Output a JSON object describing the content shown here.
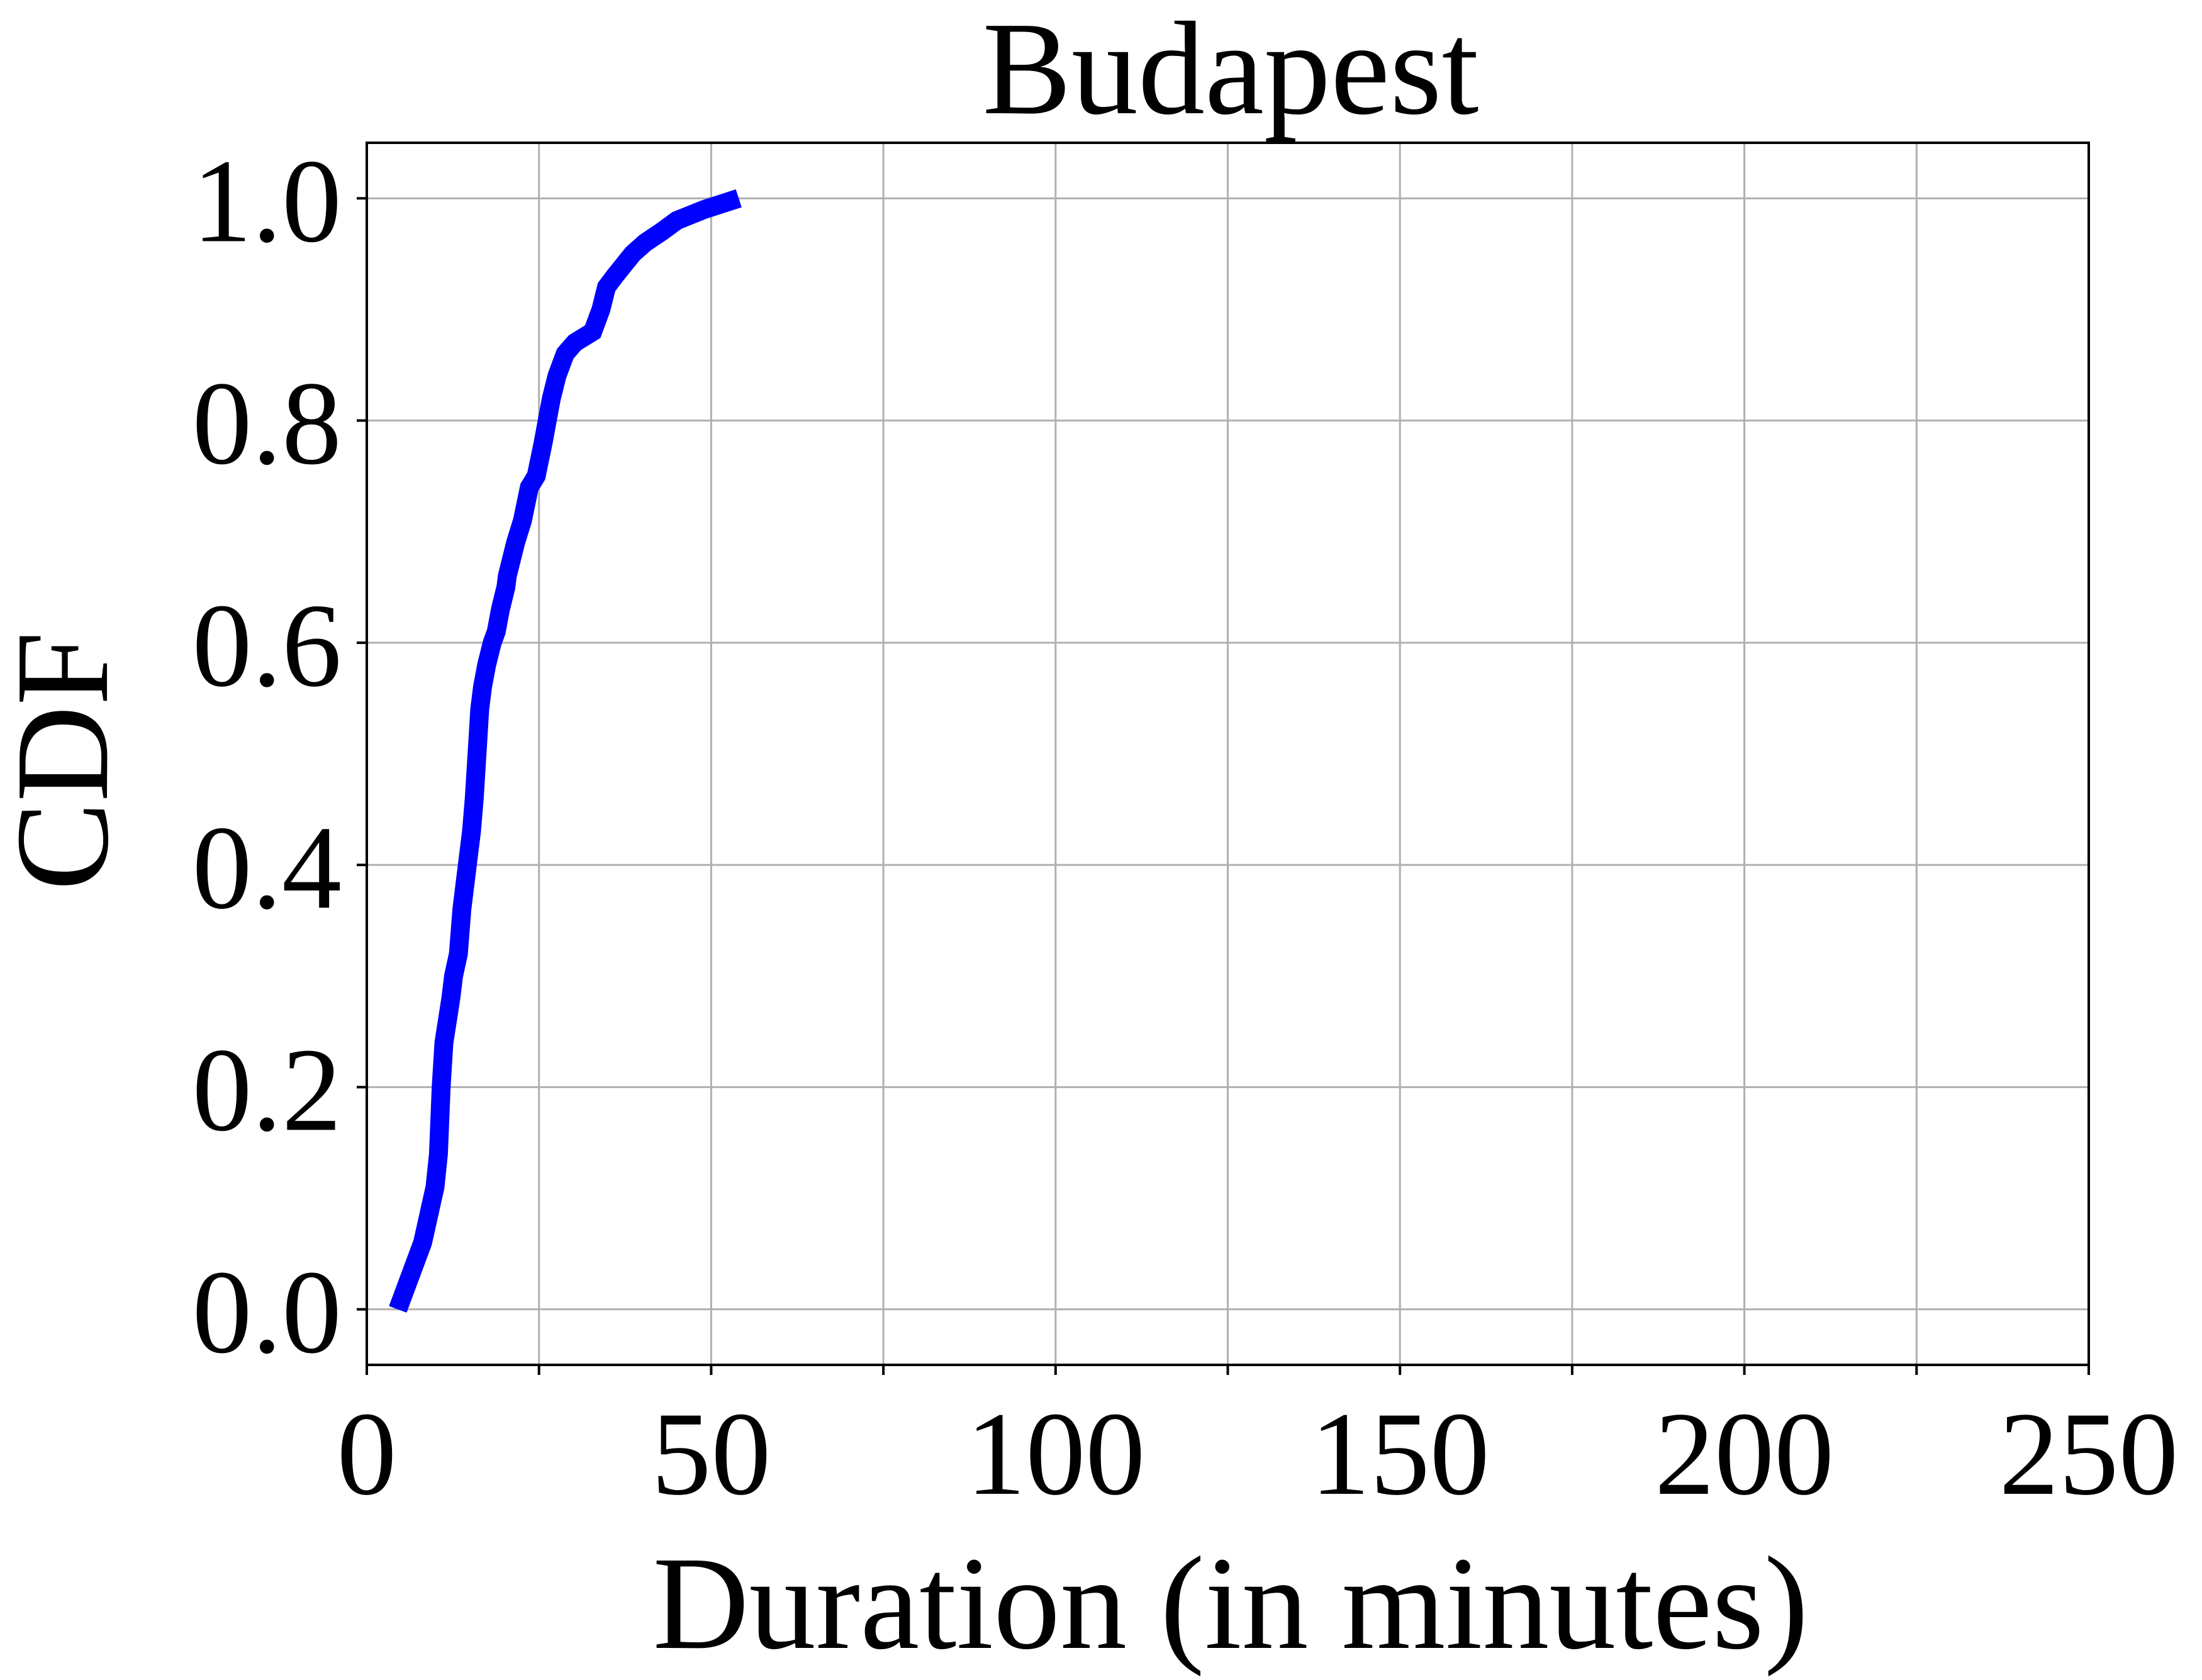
{
  "chart_data": {
    "type": "line",
    "title": "Budapest",
    "xlabel": "Duration (in minutes)",
    "ylabel": "CDF",
    "xlim": [
      0,
      250
    ],
    "ylim": [
      -0.05,
      1.05
    ],
    "x_ticks": [
      0,
      50,
      100,
      150,
      200,
      250
    ],
    "x_tick_labels": [
      "0",
      "50",
      "100",
      "150",
      "200",
      "250"
    ],
    "x_minor_ticks": [
      25,
      75,
      125,
      175,
      225
    ],
    "y_ticks": [
      0.0,
      0.2,
      0.4,
      0.6,
      0.8,
      1.0
    ],
    "y_tick_labels": [
      "0.0",
      "0.2",
      "0.4",
      "0.6",
      "0.8",
      "1.0"
    ],
    "grid": true,
    "series": [
      {
        "color": "#0000ff",
        "x": [
          4.5,
          6.3,
          8.1,
          9.9,
          10.4,
          10.8,
          11.2,
          11.7,
          12.2,
          12.6,
          13.3,
          13.8,
          14.6,
          15.2,
          15.6,
          15.8,
          16.1,
          16.4,
          16.8,
          17.4,
          18.2,
          18.8,
          19.4,
          20.2,
          20.4,
          21.6,
          22.6,
          23.6,
          24.6,
          25.6,
          26.2,
          26.8,
          27.6,
          28.2,
          28.8,
          30.2,
          32.8,
          34.0,
          34.8,
          36.0,
          38.6,
          40.4,
          42.8,
          45.0,
          49.0,
          54.0
        ],
        "y": [
          0.0,
          0.03,
          0.06,
          0.11,
          0.14,
          0.2,
          0.24,
          0.26,
          0.28,
          0.3,
          0.32,
          0.36,
          0.4,
          0.43,
          0.46,
          0.48,
          0.51,
          0.54,
          0.56,
          0.58,
          0.6,
          0.61,
          0.63,
          0.65,
          0.66,
          0.69,
          0.71,
          0.74,
          0.75,
          0.78,
          0.8,
          0.82,
          0.84,
          0.85,
          0.86,
          0.87,
          0.88,
          0.9,
          0.92,
          0.93,
          0.95,
          0.96,
          0.97,
          0.98,
          0.99,
          1.0
        ]
      }
    ]
  }
}
